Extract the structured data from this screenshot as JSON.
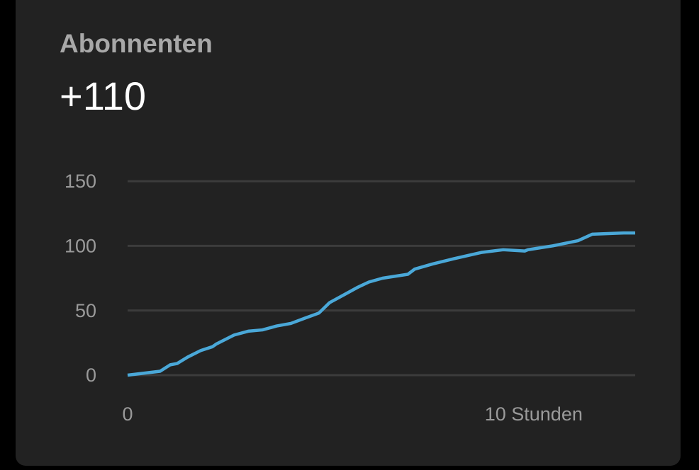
{
  "card": {
    "title": "Abonnenten",
    "value": "+110"
  },
  "chart_data": {
    "type": "line",
    "color": "#4aa8d8",
    "grid": true,
    "x": [
      0,
      0.8,
      1.05,
      1.22,
      1.48,
      1.8,
      2.09,
      2.18,
      2.62,
      2.97,
      3.32,
      3.67,
      4.02,
      4.36,
      4.71,
      4.97,
      5.32,
      5.67,
      5.94,
      6.28,
      6.9,
      7.07,
      7.51,
      8.03,
      8.73,
      9.25,
      9.78,
      9.86,
      10.47,
      11.09,
      11.44,
      12.22,
      12.5
    ],
    "values": [
      0,
      3,
      8,
      9,
      14,
      19,
      22,
      24,
      31,
      34,
      35,
      38,
      40,
      44,
      48,
      56,
      62,
      68,
      72,
      75,
      78,
      82,
      86,
      90,
      95,
      97,
      96,
      97,
      100,
      104,
      109,
      110,
      110
    ],
    "xlim": [
      0,
      12.5
    ],
    "xticks": [
      0,
      {
        "value": 10,
        "label": "10 Stunden"
      }
    ],
    "ylim": [
      0,
      150
    ],
    "yticks": [
      0,
      50,
      100,
      150
    ]
  }
}
